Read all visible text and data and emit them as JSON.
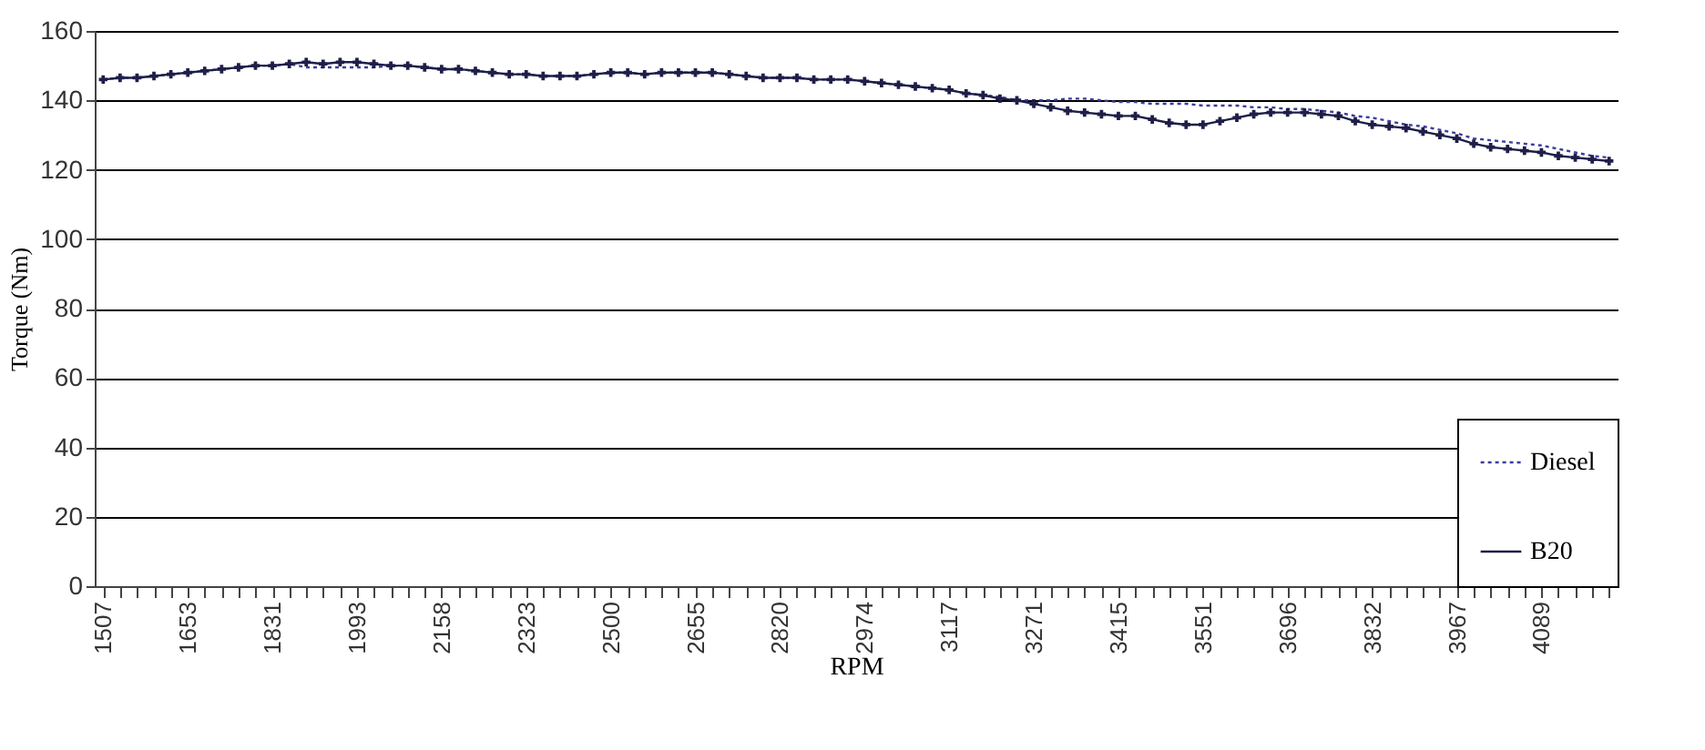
{
  "chart_data": {
    "type": "line",
    "xlabel": "RPM",
    "ylabel": "Torque (Nm)",
    "categories": [
      "1507",
      null,
      null,
      null,
      null,
      "1653",
      null,
      null,
      null,
      null,
      "1831",
      null,
      null,
      null,
      null,
      "1993",
      null,
      null,
      null,
      null,
      "2158",
      null,
      null,
      null,
      null,
      "2323",
      null,
      null,
      null,
      null,
      "2500",
      null,
      null,
      null,
      null,
      "2655",
      null,
      null,
      null,
      null,
      "2820",
      null,
      null,
      null,
      null,
      "2974",
      null,
      null,
      null,
      null,
      "3117",
      null,
      null,
      null,
      null,
      "3271",
      null,
      null,
      null,
      null,
      "3415",
      null,
      null,
      null,
      null,
      "3551",
      null,
      null,
      null,
      null,
      "3696",
      null,
      null,
      null,
      null,
      "3832",
      null,
      null,
      null,
      null,
      "3967",
      null,
      null,
      null,
      null,
      "4089",
      null,
      null,
      null,
      null
    ],
    "series": [
      {
        "name": "Diesel",
        "color": "#3c3ca0",
        "line_style": "dotted",
        "marker": "none",
        "values": [
          146,
          146.5,
          146.5,
          147,
          147.5,
          148,
          148.5,
          149,
          149.5,
          150,
          150,
          150.5,
          149.5,
          149.5,
          149.5,
          149.5,
          149.5,
          150,
          150,
          149.5,
          149,
          149,
          148.5,
          148,
          147.5,
          147.5,
          147,
          147,
          147,
          147.5,
          148,
          148,
          147.5,
          148,
          148,
          148,
          148,
          147.5,
          147,
          146.5,
          146.5,
          146.5,
          146,
          146,
          146,
          145.5,
          145,
          144.5,
          144,
          143.5,
          143,
          142,
          141.5,
          141,
          140,
          140,
          140,
          140.5,
          140.5,
          140,
          139.5,
          139.5,
          139,
          139,
          139,
          138.5,
          138.5,
          138.5,
          138,
          138,
          137.5,
          137.5,
          137,
          136.5,
          135.5,
          135,
          134,
          133,
          132.5,
          131.5,
          130.5,
          129,
          128.5,
          128,
          127.5,
          127,
          126,
          125,
          124,
          123.5
        ]
      },
      {
        "name": "B20",
        "color": "#1e1e48",
        "line_style": "solid",
        "marker": "cross",
        "values": [
          146,
          146.5,
          146.5,
          147,
          147.5,
          148,
          148.5,
          149,
          149.5,
          150,
          150,
          150.5,
          151,
          150.5,
          151,
          151,
          150.5,
          150,
          150,
          149.5,
          149,
          149,
          148.5,
          148,
          147.5,
          147.5,
          147,
          147,
          147,
          147.5,
          148,
          148,
          147.5,
          148,
          148,
          148,
          148,
          147.5,
          147,
          146.5,
          146.5,
          146.5,
          146,
          146,
          146,
          145.5,
          145,
          144.5,
          144,
          143.5,
          143,
          142,
          141.5,
          140.5,
          140,
          139,
          138,
          137,
          136.5,
          136,
          135.5,
          135.5,
          134.5,
          133.5,
          133,
          133,
          134,
          135,
          136,
          136.5,
          136.5,
          136.5,
          136,
          135.5,
          134,
          133,
          132.5,
          132,
          131,
          130,
          129,
          127.5,
          126.5,
          126,
          125.5,
          125,
          124,
          123.5,
          123,
          122.5
        ]
      }
    ],
    "ylim": [
      0,
      160
    ],
    "yticks": [
      0,
      20,
      40,
      60,
      80,
      100,
      120,
      140,
      160
    ],
    "grid": "y",
    "legend": "bottom right"
  }
}
